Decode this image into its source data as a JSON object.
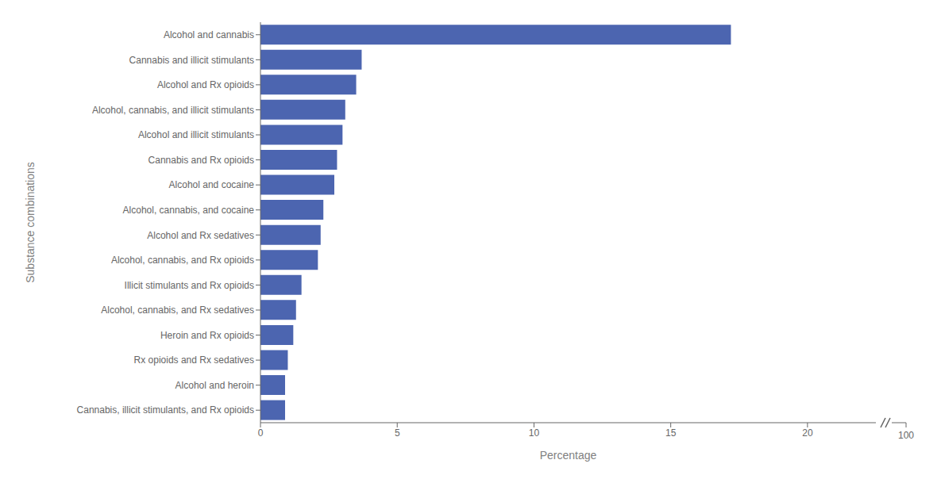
{
  "chart_data": {
    "type": "bar",
    "orientation": "horizontal",
    "xlabel": "Percentage",
    "ylabel": "Substance combinations",
    "categories": [
      "Cannabis, illicit stimulants, and Rx opioids",
      "Alcohol and heroin",
      "Rx opioids and Rx sedatives",
      "Heroin and Rx opioids",
      "Alcohol, cannabis, and Rx sedatives",
      "Illicit stimulants and Rx opioids",
      "Alcohol, cannabis, and Rx opioids",
      "Alcohol and Rx sedatives",
      "Alcohol, cannabis, and cocaine",
      "Alcohol and cocaine",
      "Cannabis and Rx opioids",
      "Alcohol and illicit stimulants",
      "Alcohol, cannabis, and illicit stimulants",
      "Alcohol and Rx opioids",
      "Cannabis and illicit stimulants",
      "Alcohol and cannabis"
    ],
    "values": [
      0.9,
      0.9,
      1.0,
      1.2,
      1.3,
      1.5,
      2.1,
      2.2,
      2.3,
      2.7,
      2.8,
      3.0,
      3.1,
      3.5,
      3.7,
      17.2
    ],
    "color": "#4c65b0",
    "xlim": [
      0,
      22.5
    ],
    "xticks": [
      0,
      5,
      10,
      15,
      20
    ],
    "grid": false,
    "annotations": [
      "100"
    ]
  }
}
